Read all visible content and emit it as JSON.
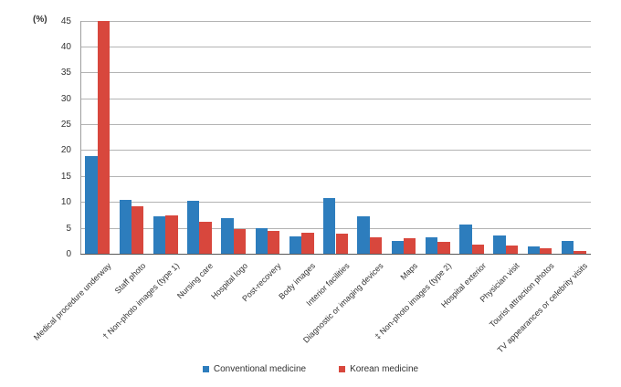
{
  "chart_data": {
    "type": "bar",
    "title": "",
    "ylabel": "(%)",
    "xlabel": "",
    "ylim": [
      0,
      45
    ],
    "ytick_step": 5,
    "grid": true,
    "legend_position": "bottom",
    "categories": [
      "Medical procedure underway",
      "Staff photo",
      "† Non-photo images (type 1)",
      "Nursing care",
      "Hospital logo",
      "Post-recovery",
      "Body images",
      "Interior facilities",
      "Diagnostic or imaging devices",
      "Maps",
      "‡ Non-photo images (type 2)",
      "Hospital exterior",
      "Physician visit",
      "Tourist attraction photos",
      "TV appearances or celebrity visits"
    ],
    "series": [
      {
        "name": "Conventional medicine",
        "color": "#2d7dbd",
        "values": [
          18.9,
          10.4,
          7.3,
          10.3,
          7.0,
          5.0,
          3.4,
          10.9,
          7.3,
          2.6,
          3.3,
          5.8,
          3.6,
          1.5,
          2.6
        ]
      },
      {
        "name": "Korean medicine",
        "color": "#d8473d",
        "values": [
          45.0,
          9.3,
          7.5,
          6.3,
          4.9,
          4.5,
          4.1,
          3.9,
          3.2,
          3.1,
          2.4,
          1.8,
          1.6,
          1.1,
          0.7
        ]
      }
    ]
  }
}
